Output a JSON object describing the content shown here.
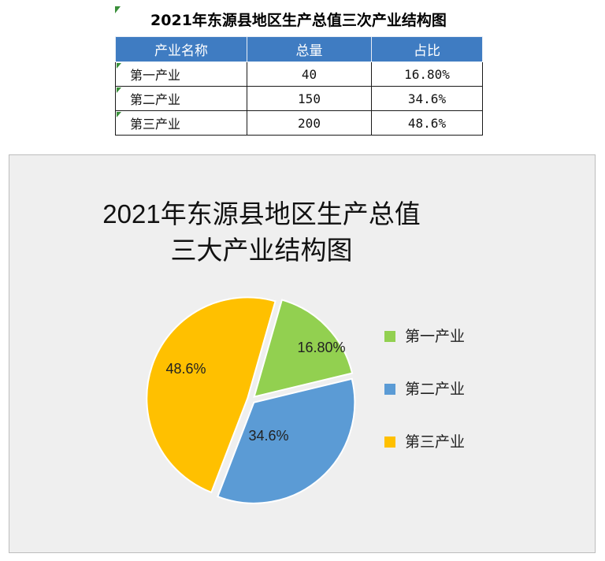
{
  "table": {
    "title": "2021年东源县地区生产总值三次产业结构图",
    "headers": [
      "产业名称",
      "总量",
      "占比"
    ],
    "rows": [
      [
        "第一产业",
        "40",
        "16.80%"
      ],
      [
        "第二产业",
        "150",
        "34.6%"
      ],
      [
        "第三产业",
        "200",
        "48.6%"
      ]
    ]
  },
  "chart_data": {
    "type": "pie",
    "title_line1": "2021年东源县地区生产总值",
    "title_line2": "三大产业结构图",
    "categories": [
      "第一产业",
      "第二产业",
      "第三产业"
    ],
    "values": [
      16.8,
      34.6,
      48.6
    ],
    "data_labels": [
      "16.80%",
      "34.6%",
      "48.6%"
    ],
    "colors": [
      "#92d050",
      "#5b9bd5",
      "#ffc000"
    ],
    "legend_position": "right"
  }
}
